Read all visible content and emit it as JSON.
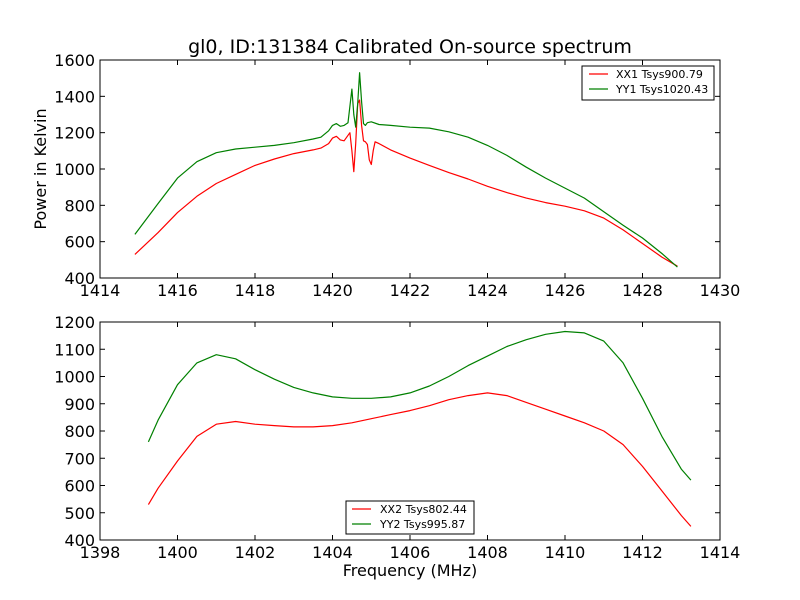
{
  "chart_data": [
    {
      "type": "line",
      "title": "gl0, ID:131384 Calibrated On-source spectrum",
      "xlabel": "",
      "ylabel": "Power in Kelvin",
      "xlim": [
        1414,
        1430
      ],
      "ylim": [
        400,
        1600
      ],
      "xticks": [
        1414,
        1416,
        1418,
        1420,
        1422,
        1424,
        1426,
        1428,
        1430
      ],
      "yticks": [
        400,
        600,
        800,
        1000,
        1200,
        1400,
        1600
      ],
      "legend": "top-right",
      "grid": false,
      "series": [
        {
          "name": "XX1 Tsys900.79",
          "color": "#ff0000",
          "x": [
            1414.9,
            1415.5,
            1416.0,
            1416.5,
            1417.0,
            1417.5,
            1418.0,
            1418.5,
            1419.0,
            1419.5,
            1419.7,
            1419.9,
            1420.0,
            1420.1,
            1420.2,
            1420.3,
            1420.45,
            1420.5,
            1420.55,
            1420.6,
            1420.65,
            1420.7,
            1420.75,
            1420.8,
            1420.85,
            1420.9,
            1420.95,
            1421.0,
            1421.05,
            1421.1,
            1421.2,
            1421.5,
            1422.0,
            1422.5,
            1423.0,
            1423.5,
            1424.0,
            1424.5,
            1425.0,
            1425.5,
            1426.0,
            1426.5,
            1427.0,
            1427.5,
            1428.0,
            1428.5,
            1428.9
          ],
          "y": [
            530,
            650,
            760,
            850,
            920,
            970,
            1020,
            1055,
            1085,
            1105,
            1115,
            1140,
            1170,
            1180,
            1160,
            1155,
            1200,
            1100,
            985,
            1140,
            1360,
            1380,
            1240,
            1155,
            1150,
            1135,
            1050,
            1025,
            1100,
            1150,
            1140,
            1105,
            1060,
            1020,
            980,
            945,
            905,
            870,
            840,
            815,
            795,
            770,
            730,
            665,
            590,
            515,
            465
          ]
        },
        {
          "name": "YY1 Tsys1020.43",
          "color": "#008000",
          "x": [
            1414.9,
            1415.5,
            1416.0,
            1416.5,
            1417.0,
            1417.5,
            1418.0,
            1418.5,
            1419.0,
            1419.5,
            1419.7,
            1419.9,
            1420.0,
            1420.1,
            1420.2,
            1420.3,
            1420.4,
            1420.5,
            1420.55,
            1420.6,
            1420.65,
            1420.7,
            1420.75,
            1420.8,
            1420.85,
            1420.9,
            1421.0,
            1421.2,
            1421.5,
            1422.0,
            1422.5,
            1423.0,
            1423.5,
            1424.0,
            1424.5,
            1425.0,
            1425.5,
            1426.0,
            1426.5,
            1427.0,
            1427.5,
            1428.0,
            1428.5,
            1428.9
          ],
          "y": [
            640,
            810,
            950,
            1040,
            1090,
            1110,
            1120,
            1130,
            1145,
            1165,
            1175,
            1210,
            1240,
            1250,
            1235,
            1240,
            1255,
            1440,
            1300,
            1230,
            1360,
            1530,
            1370,
            1250,
            1240,
            1255,
            1260,
            1245,
            1240,
            1230,
            1225,
            1205,
            1175,
            1130,
            1075,
            1010,
            950,
            895,
            840,
            765,
            690,
            620,
            535,
            460
          ]
        }
      ]
    },
    {
      "type": "line",
      "title": "",
      "xlabel": "Frequency (MHz)",
      "ylabel": "",
      "xlim": [
        1398,
        1414
      ],
      "ylim": [
        400,
        1200
      ],
      "xticks": [
        1398,
        1400,
        1402,
        1404,
        1406,
        1408,
        1410,
        1412,
        1414
      ],
      "yticks": [
        400,
        500,
        600,
        700,
        800,
        900,
        1000,
        1100,
        1200
      ],
      "legend": "bottom-center",
      "grid": false,
      "series": [
        {
          "name": "XX2 Tsys802.44",
          "color": "#ff0000",
          "x": [
            1399.25,
            1399.5,
            1400.0,
            1400.5,
            1401.0,
            1401.5,
            1402.0,
            1402.5,
            1403.0,
            1403.5,
            1404.0,
            1404.5,
            1405.0,
            1405.5,
            1406.0,
            1406.5,
            1407.0,
            1407.5,
            1408.0,
            1408.5,
            1409.0,
            1409.5,
            1410.0,
            1410.5,
            1411.0,
            1411.5,
            1412.0,
            1412.5,
            1413.0,
            1413.25
          ],
          "y": [
            530,
            590,
            690,
            780,
            825,
            835,
            825,
            820,
            815,
            815,
            820,
            830,
            845,
            860,
            875,
            893,
            915,
            930,
            940,
            930,
            905,
            880,
            855,
            830,
            800,
            750,
            670,
            580,
            490,
            450
          ]
        },
        {
          "name": "YY2 Tsys995.87",
          "color": "#008000",
          "x": [
            1399.25,
            1399.5,
            1400.0,
            1400.5,
            1401.0,
            1401.5,
            1402.0,
            1402.5,
            1403.0,
            1403.5,
            1404.0,
            1404.5,
            1405.0,
            1405.5,
            1406.0,
            1406.5,
            1407.0,
            1407.5,
            1408.0,
            1408.5,
            1409.0,
            1409.5,
            1410.0,
            1410.5,
            1411.0,
            1411.5,
            1412.0,
            1412.5,
            1413.0,
            1413.25
          ],
          "y": [
            760,
            840,
            970,
            1050,
            1080,
            1065,
            1025,
            990,
            960,
            940,
            925,
            920,
            920,
            925,
            940,
            965,
            1000,
            1040,
            1075,
            1110,
            1135,
            1155,
            1165,
            1160,
            1130,
            1050,
            920,
            780,
            660,
            620
          ]
        }
      ]
    }
  ]
}
